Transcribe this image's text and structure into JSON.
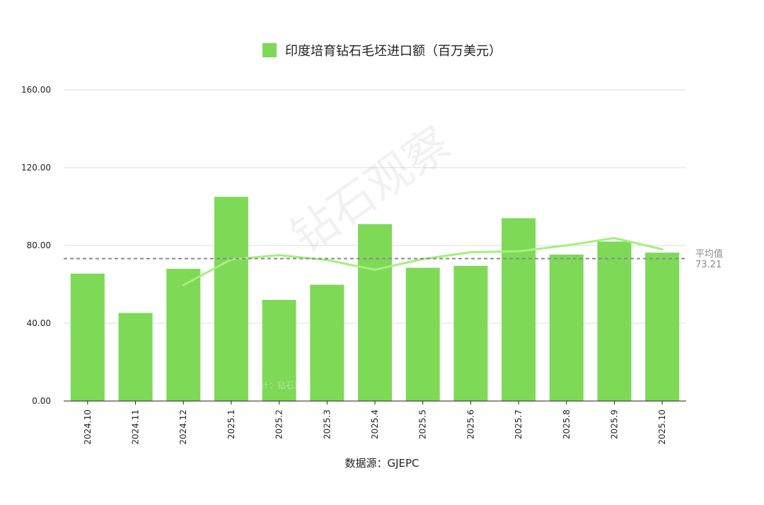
{
  "chart_data": {
    "type": "bar",
    "title": "印度培育钻石毛坯进口额（百万美元）",
    "categories": [
      "2024.10",
      "2024.11",
      "2024.12",
      "2025.1",
      "2025.2",
      "2025.3",
      "2025.4",
      "2025.5",
      "2025.6",
      "2025.7",
      "2025.8",
      "2025.9",
      "2025.10"
    ],
    "series": [
      {
        "name": "印度培育钻石毛坯进口额（百万美元）",
        "values": [
          65.5,
          45.3,
          68.0,
          105.0,
          52.0,
          59.8,
          91.0,
          68.5,
          69.5,
          94.0,
          75.3,
          82.0,
          76.3
        ]
      }
    ],
    "trend_values": [
      null,
      null,
      59.6,
      72.8,
      75.0,
      72.5,
      67.5,
      73.0,
      76.5,
      77.0,
      80.0,
      83.8,
      78.0
    ],
    "average": {
      "label": "平均值",
      "value_text": "73.21",
      "value": 73.21
    },
    "ylim": [
      0,
      160
    ],
    "yticks": [
      "0.00",
      "40.00",
      "80.00",
      "120.00",
      "160.00"
    ],
    "ytick_values": [
      0,
      40,
      80,
      120,
      160
    ],
    "grid": true,
    "legend_position": "top-center",
    "colors": {
      "bar": "#7ed957",
      "trend": "#a5ef7f",
      "average": "#8a8a8a",
      "grid": "#dddddd"
    }
  },
  "source_text": "数据源：GJEPC",
  "watermark": {
    "text": "钻石观察",
    "small_text": "统计：钻石观察"
  }
}
